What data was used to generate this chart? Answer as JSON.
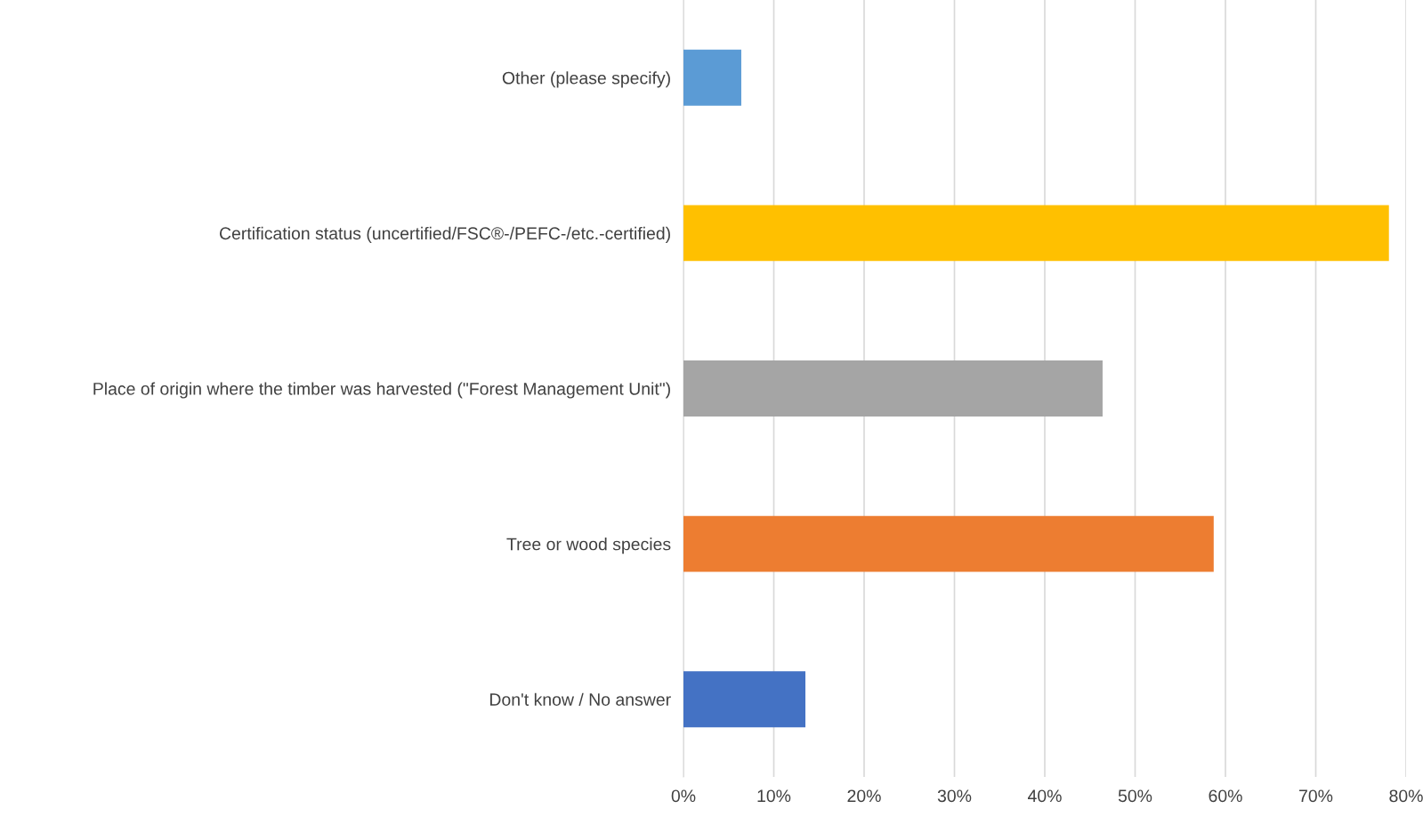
{
  "chart_data": {
    "type": "bar",
    "orientation": "horizontal",
    "categories": [
      "Other (please specify)",
      "Certification status (uncertified/FSC®-/PEFC-/etc.-certified)",
      "Place of origin where the timber was harvested (\"Forest Management Unit\")",
      "Tree or wood species",
      "Don't know / No answer"
    ],
    "values": [
      6.4,
      78.1,
      46.4,
      58.7,
      13.5
    ],
    "colors": [
      "#5b9bd5",
      "#ffc000",
      "#a5a5a5",
      "#ed7d31",
      "#4472c4"
    ],
    "xlim": [
      0,
      80
    ],
    "xticks": [
      {
        "value": 0,
        "label": "0%"
      },
      {
        "value": 10,
        "label": "10%"
      },
      {
        "value": 20,
        "label": "20%"
      },
      {
        "value": 30,
        "label": "30%"
      },
      {
        "value": 40,
        "label": "40%"
      },
      {
        "value": 50,
        "label": "50%"
      },
      {
        "value": 60,
        "label": "60%"
      },
      {
        "value": 70,
        "label": "70%"
      },
      {
        "value": 80,
        "label": "80%"
      }
    ],
    "grid": "x",
    "legend": false
  }
}
